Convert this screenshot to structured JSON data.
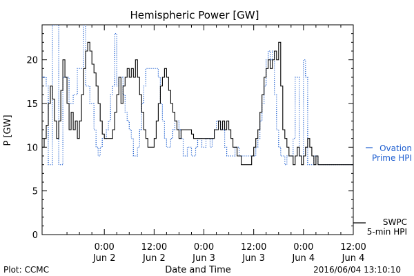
{
  "footer": {
    "plot_credit": "Plot: CCMC",
    "timestamp": "2016/06/04 13:10:10"
  },
  "chart_data": {
    "type": "line",
    "title": "Hemispheric Power [GW]",
    "xlabel": "Date and Time",
    "ylabel": "P [GW]",
    "ylim": [
      0,
      24
    ],
    "xlim_hours": [
      -15,
      60
    ],
    "y_ticks": [
      0,
      5,
      10,
      15,
      20
    ],
    "x_ticks": [
      {
        "hour": 0,
        "time": "0:00",
        "date": "Jun 2"
      },
      {
        "hour": 12,
        "time": "12:00",
        "date": "Jun 2"
      },
      {
        "hour": 24,
        "time": "0:00",
        "date": "Jun 3"
      },
      {
        "hour": 36,
        "time": "12:00",
        "date": "Jun 3"
      },
      {
        "hour": 48,
        "time": "0:00",
        "date": "Jun 4"
      },
      {
        "hour": 60,
        "time": "12:00",
        "date": "Jun 4"
      }
    ],
    "grid": false,
    "legend_position": "right",
    "series": [
      {
        "name": "SWPC 5-min HPI",
        "legend_line1": "SWPC",
        "legend_line2": "5-min HPI",
        "color": "#000000",
        "style": "solid",
        "points": [
          [
            -15,
            10
          ],
          [
            -14.5,
            11
          ],
          [
            -14,
            12.5
          ],
          [
            -13.5,
            15
          ],
          [
            -13,
            17
          ],
          [
            -12.5,
            15.5
          ],
          [
            -12,
            13
          ],
          [
            -11.5,
            11
          ],
          [
            -11,
            13
          ],
          [
            -10.5,
            16.5
          ],
          [
            -10,
            20
          ],
          [
            -9.5,
            18
          ],
          [
            -9,
            15
          ],
          [
            -8.5,
            12
          ],
          [
            -8,
            14
          ],
          [
            -7.5,
            12
          ],
          [
            -7,
            13
          ],
          [
            -6.5,
            11
          ],
          [
            -6,
            13
          ],
          [
            -5.5,
            16
          ],
          [
            -5,
            19
          ],
          [
            -4.5,
            21
          ],
          [
            -4,
            22
          ],
          [
            -3.5,
            21
          ],
          [
            -3,
            19.5
          ],
          [
            -2.5,
            18.5
          ],
          [
            -2,
            17
          ],
          [
            -1.5,
            15
          ],
          [
            -1,
            13
          ],
          [
            -0.5,
            11.5
          ],
          [
            0,
            11
          ],
          [
            0.5,
            11
          ],
          [
            1,
            11
          ],
          [
            1.5,
            11
          ],
          [
            2,
            12
          ],
          [
            2.5,
            14
          ],
          [
            3,
            16
          ],
          [
            3.5,
            18
          ],
          [
            4,
            15
          ],
          [
            4.5,
            17
          ],
          [
            5,
            18
          ],
          [
            5.5,
            19
          ],
          [
            6,
            18
          ],
          [
            6.5,
            19
          ],
          [
            7,
            18
          ],
          [
            7.5,
            20
          ],
          [
            8,
            18
          ],
          [
            8.5,
            16
          ],
          [
            9,
            14
          ],
          [
            9.5,
            12
          ],
          [
            10,
            11
          ],
          [
            10.5,
            10
          ],
          [
            11,
            10
          ],
          [
            11.5,
            10
          ],
          [
            12,
            11
          ],
          [
            12.5,
            13
          ],
          [
            13,
            15
          ],
          [
            13.5,
            17
          ],
          [
            14,
            18
          ],
          [
            14.5,
            19
          ],
          [
            15,
            18
          ],
          [
            15.5,
            16.5
          ],
          [
            16,
            15
          ],
          [
            16.5,
            14
          ],
          [
            17,
            13
          ],
          [
            17.5,
            12
          ],
          [
            18,
            11
          ],
          [
            18.5,
            12
          ],
          [
            19,
            12
          ],
          [
            19.5,
            12
          ],
          [
            20,
            12
          ],
          [
            20.5,
            12
          ],
          [
            21,
            11.5
          ],
          [
            21.5,
            11
          ],
          [
            22,
            11
          ],
          [
            22.5,
            11
          ],
          [
            23,
            11
          ],
          [
            23.5,
            11
          ],
          [
            24,
            11
          ],
          [
            24.5,
            11
          ],
          [
            25,
            11
          ],
          [
            25.5,
            11
          ],
          [
            26,
            11
          ],
          [
            26.5,
            12
          ],
          [
            27,
            12
          ],
          [
            27.5,
            13
          ],
          [
            28,
            12
          ],
          [
            28.5,
            13
          ],
          [
            29,
            12
          ],
          [
            29.5,
            13
          ],
          [
            30,
            12
          ],
          [
            30.5,
            11
          ],
          [
            31,
            10
          ],
          [
            31.5,
            10
          ],
          [
            32,
            9
          ],
          [
            32.5,
            9
          ],
          [
            33,
            8
          ],
          [
            33.5,
            8
          ],
          [
            34,
            8
          ],
          [
            34.5,
            8
          ],
          [
            35,
            8
          ],
          [
            35.5,
            9
          ],
          [
            36,
            10
          ],
          [
            36.5,
            11
          ],
          [
            37,
            12
          ],
          [
            37.5,
            14
          ],
          [
            38,
            16
          ],
          [
            38.5,
            18
          ],
          [
            39,
            19
          ],
          [
            39.5,
            20
          ],
          [
            40,
            19
          ],
          [
            40.5,
            20
          ],
          [
            41,
            21
          ],
          [
            41.5,
            20
          ],
          [
            42,
            22
          ],
          [
            42.5,
            17
          ],
          [
            43,
            12
          ],
          [
            43.5,
            11
          ],
          [
            44,
            10
          ],
          [
            44.5,
            9
          ],
          [
            45,
            9
          ],
          [
            45.5,
            8
          ],
          [
            46,
            9
          ],
          [
            46.5,
            10
          ],
          [
            47,
            9
          ],
          [
            47.5,
            8
          ],
          [
            48,
            9
          ],
          [
            48.5,
            10
          ],
          [
            49,
            11
          ],
          [
            49.5,
            10
          ],
          [
            50,
            9
          ],
          [
            50.5,
            8
          ],
          [
            51,
            9
          ],
          [
            51.5,
            8
          ],
          [
            52,
            8
          ],
          [
            52.5,
            8
          ],
          [
            53,
            8
          ],
          [
            53.5,
            8
          ],
          [
            54,
            8
          ],
          [
            54.5,
            8
          ],
          [
            55,
            8
          ],
          [
            55.5,
            8
          ],
          [
            56,
            8
          ],
          [
            56.5,
            8
          ],
          [
            57,
            8
          ],
          [
            57.5,
            8
          ],
          [
            58,
            8
          ],
          [
            58.5,
            8
          ],
          [
            59,
            8
          ],
          [
            59.5,
            8
          ],
          [
            60,
            8
          ]
        ]
      },
      {
        "name": "Ovation Prime HPI",
        "legend_line1": "Ovation",
        "legend_line2": "Prime HPI",
        "color": "#1f5fd0",
        "style": "dotted",
        "points": [
          [
            -15,
            18
          ],
          [
            -14,
            17
          ],
          [
            -13.5,
            8
          ],
          [
            -13,
            8
          ],
          [
            -12.5,
            24
          ],
          [
            -12,
            24
          ],
          [
            -11.5,
            24
          ],
          [
            -11,
            8
          ],
          [
            -10.5,
            8
          ],
          [
            -10,
            18
          ],
          [
            -9,
            18
          ],
          [
            -8.5,
            15
          ],
          [
            -8,
            15
          ],
          [
            -7.5,
            16
          ],
          [
            -7,
            16
          ],
          [
            -6.5,
            19
          ],
          [
            -5.5,
            19
          ],
          [
            -5,
            24
          ],
          [
            -4.5,
            17
          ],
          [
            -4,
            17
          ],
          [
            -3.5,
            15
          ],
          [
            -3,
            15
          ],
          [
            -2.5,
            12
          ],
          [
            -2,
            10
          ],
          [
            -1.5,
            9
          ],
          [
            -1,
            10
          ],
          [
            -0.5,
            11
          ],
          [
            0,
            11
          ],
          [
            0.5,
            12
          ],
          [
            1,
            13
          ],
          [
            1.5,
            16
          ],
          [
            2,
            17
          ],
          [
            2.5,
            23
          ],
          [
            3,
            17
          ],
          [
            3.5,
            18
          ],
          [
            4,
            18
          ],
          [
            4.5,
            16
          ],
          [
            5,
            14
          ],
          [
            5.5,
            13
          ],
          [
            6,
            12
          ],
          [
            6.5,
            11
          ],
          [
            7,
            9
          ],
          [
            7.5,
            9
          ],
          [
            8,
            10
          ],
          [
            8.5,
            12
          ],
          [
            9,
            15
          ],
          [
            9.5,
            17
          ],
          [
            10,
            19
          ],
          [
            10.5,
            19
          ],
          [
            11,
            19
          ],
          [
            11.5,
            19
          ],
          [
            12,
            19
          ],
          [
            12.5,
            19
          ],
          [
            13,
            18
          ],
          [
            13.5,
            15
          ],
          [
            14,
            13
          ],
          [
            14.5,
            11
          ],
          [
            15,
            10
          ],
          [
            15.5,
            10
          ],
          [
            16,
            11
          ],
          [
            16.5,
            12
          ],
          [
            17,
            13
          ],
          [
            17.5,
            13
          ],
          [
            18,
            12
          ],
          [
            18.5,
            11
          ],
          [
            19,
            9
          ],
          [
            19.5,
            9
          ],
          [
            20,
            10
          ],
          [
            20.5,
            10
          ],
          [
            21,
            9
          ],
          [
            21.5,
            9
          ],
          [
            22,
            10
          ],
          [
            22.5,
            11
          ],
          [
            23,
            11
          ],
          [
            23.5,
            10
          ],
          [
            24,
            10
          ],
          [
            24.5,
            11
          ],
          [
            25,
            11
          ],
          [
            25.5,
            10
          ],
          [
            26,
            11
          ],
          [
            26.5,
            12
          ],
          [
            27,
            13
          ],
          [
            27.5,
            13
          ],
          [
            28,
            12
          ],
          [
            28.5,
            12
          ],
          [
            29,
            10
          ],
          [
            29.5,
            9
          ],
          [
            30,
            9
          ],
          [
            30.5,
            9
          ],
          [
            31,
            9
          ],
          [
            31.5,
            10
          ],
          [
            32,
            10
          ],
          [
            32.5,
            9
          ],
          [
            33,
            9
          ],
          [
            33.5,
            9
          ],
          [
            34,
            9
          ],
          [
            34.5,
            9
          ],
          [
            35,
            9
          ],
          [
            35.5,
            9
          ],
          [
            36,
            9
          ],
          [
            36.5,
            10
          ],
          [
            37,
            11
          ],
          [
            37.5,
            13
          ],
          [
            38,
            15
          ],
          [
            38.5,
            17
          ],
          [
            39,
            20
          ],
          [
            39.5,
            21
          ],
          [
            40,
            20
          ],
          [
            40.5,
            21
          ],
          [
            41,
            16
          ],
          [
            41.5,
            12
          ],
          [
            42,
            10
          ],
          [
            42.5,
            9
          ],
          [
            43,
            9
          ],
          [
            43.5,
            8
          ],
          [
            44,
            9
          ],
          [
            44.5,
            9
          ],
          [
            45,
            9
          ],
          [
            45.5,
            11
          ],
          [
            46,
            18
          ],
          [
            46.5,
            18
          ],
          [
            47,
            9
          ],
          [
            47.5,
            9
          ],
          [
            48,
            20
          ],
          [
            48.5,
            18
          ],
          [
            49,
            8
          ],
          [
            49.5,
            8
          ],
          [
            50,
            8
          ],
          [
            50.5,
            9
          ],
          [
            51,
            9
          ],
          [
            51.5,
            8
          ],
          [
            52,
            8
          ],
          [
            52.5,
            8
          ],
          [
            53,
            8
          ],
          [
            53.5,
            8
          ],
          [
            54,
            8
          ],
          [
            54.5,
            8
          ],
          [
            55,
            8
          ],
          [
            55.5,
            8
          ],
          [
            56,
            8
          ],
          [
            56.5,
            8
          ],
          [
            57,
            8
          ],
          [
            57.5,
            8
          ],
          [
            58,
            8
          ],
          [
            58.5,
            8
          ],
          [
            59,
            8
          ],
          [
            59.5,
            8
          ],
          [
            60,
            8
          ]
        ]
      }
    ]
  }
}
